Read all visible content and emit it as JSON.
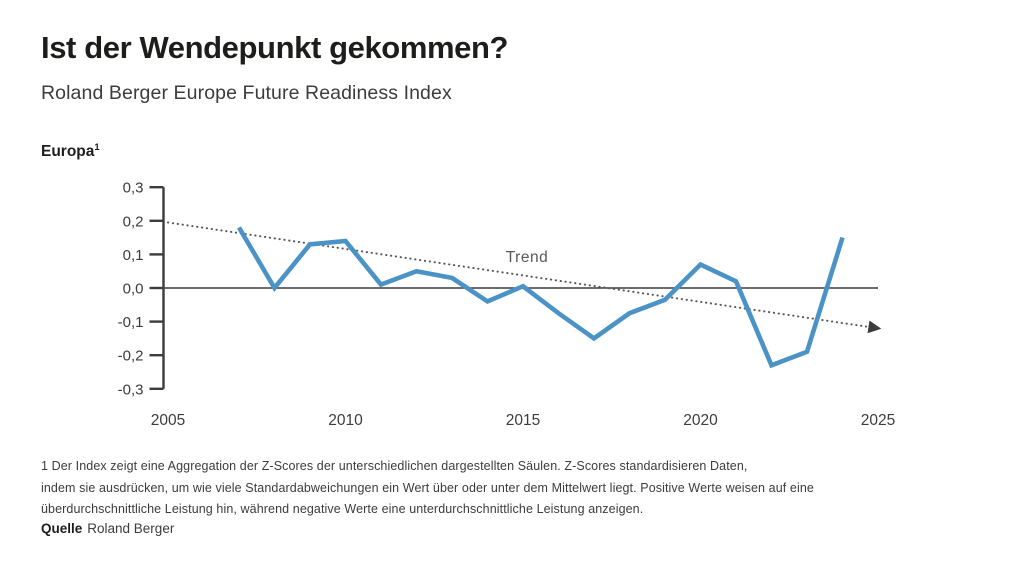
{
  "header": {
    "title": "Ist der Wendepunkt gekommen?",
    "subtitle": "Roland Berger Europe Future Readiness Index"
  },
  "chart_header": {
    "label": "Europa",
    "footnote_marker": "1"
  },
  "chart_data": {
    "type": "line",
    "title": "Europa¹ — Roland Berger Europe Future Readiness Index",
    "x": [
      2007,
      2008,
      2009,
      2010,
      2011,
      2012,
      2013,
      2014,
      2015,
      2016,
      2017,
      2018,
      2019,
      2020,
      2021,
      2022,
      2023,
      2024
    ],
    "series": [
      {
        "name": "Europe Future Readiness Index (Z-Score)",
        "color": "#4b93c7",
        "values": [
          0.18,
          0.0,
          0.13,
          0.14,
          0.01,
          0.05,
          0.03,
          -0.04,
          0.005,
          -0.075,
          -0.15,
          -0.075,
          -0.035,
          0.07,
          0.02,
          -0.23,
          -0.19,
          0.15
        ]
      }
    ],
    "trend": {
      "label": "Trend",
      "color": "#58585a",
      "style": "dotted-arrow",
      "points": [
        {
          "x": 2005,
          "y": 0.195
        },
        {
          "x": 2025,
          "y": -0.12
        }
      ]
    },
    "xlabel": "",
    "ylabel": "",
    "xlim": [
      2005,
      2025
    ],
    "ylim": [
      -0.3,
      0.3
    ],
    "x_ticks": [
      2005,
      2010,
      2015,
      2020,
      2025
    ],
    "x_tick_labels": [
      "2005",
      "2010",
      "2015",
      "2020",
      "2025"
    ],
    "y_ticks": [
      0.3,
      0.2,
      0.1,
      0.0,
      -0.1,
      -0.2,
      -0.3
    ],
    "y_tick_labels": [
      "0,3",
      "0,2",
      "0,1",
      "0,0",
      "-0,1",
      "-0,2",
      "-0,3"
    ],
    "grid": false,
    "zero_line": true,
    "legend_position": "none",
    "axis_color": "#3c3c3b"
  },
  "footnote": {
    "lines": [
      "1  Der Index zeigt eine Aggregation der Z-Scores der unterschiedlichen dargestellten Säulen. Z-Scores standardisieren Daten,",
      "indem sie ausdrücken, um wie viele Standardabweichungen ein Wert über oder unter dem Mittelwert liegt. Positive Werte weisen auf eine",
      "überdurchschnittliche Leistung hin, während negative Werte eine unterdurchschnittliche Leistung anzeigen."
    ]
  },
  "footer": {
    "source_label": "Quelle",
    "source_value": "Roland Berger"
  }
}
